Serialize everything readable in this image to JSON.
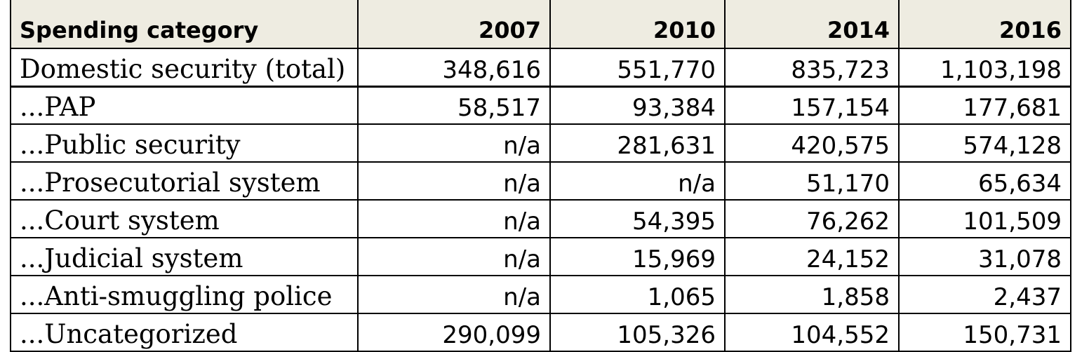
{
  "table": {
    "headers": [
      "Spending category",
      "2007",
      "2010",
      "2014",
      "2016"
    ],
    "rows": [
      [
        "Domestic security (total)",
        "348,616",
        "551,770",
        "835,723",
        "1,103,198"
      ],
      [
        "...PAP",
        "58,517",
        "93,384",
        "157,154",
        "177,681"
      ],
      [
        "...Public security",
        "n/a",
        "281,631",
        "420,575",
        "574,128"
      ],
      [
        "...Prosecutorial system",
        "n/a",
        "n/a",
        "51,170",
        "65,634"
      ],
      [
        "...Court system",
        "n/a",
        "54,395",
        "76,262",
        "101,509"
      ],
      [
        "...Judicial system",
        "n/a",
        "15,969",
        "24,152",
        "31,078"
      ],
      [
        "...Anti-smuggling police",
        "n/a",
        "1,065",
        "1,858",
        "2,437"
      ],
      [
        "...Uncategorized",
        "290,099",
        "105,326",
        "104,552",
        "150,731"
      ]
    ]
  },
  "colors": {
    "header_background": "#eeece1",
    "border": "#000000",
    "text": "#000000"
  }
}
